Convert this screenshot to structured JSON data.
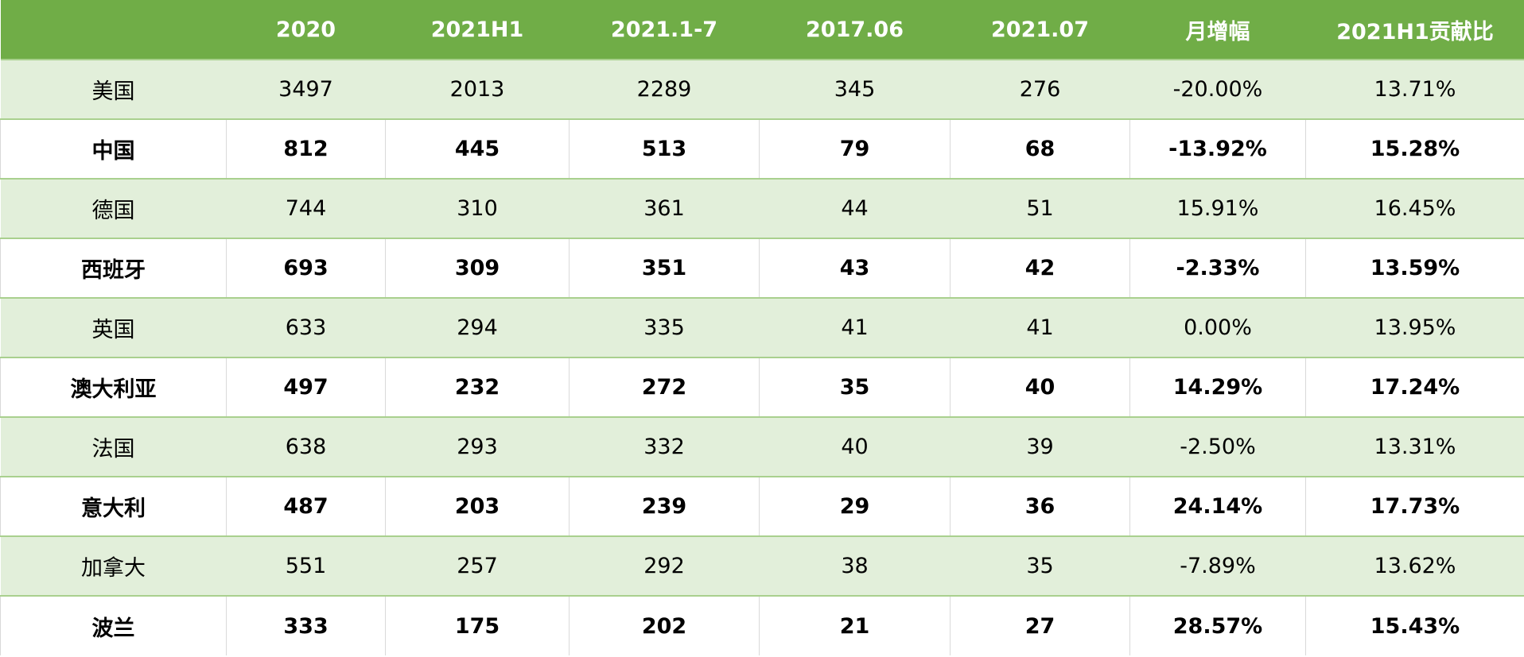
{
  "colors": {
    "header_bg": "#70ad47",
    "band_bg": "#e2efda",
    "border": "#a9d08e"
  },
  "headers": [
    "",
    "2020",
    "2021H1",
    "2021.1-7",
    "2017.06",
    "2021.07",
    "月增幅",
    "2021H1贡献比"
  ],
  "rows": [
    [
      "美国",
      "3497",
      "2013",
      "2289",
      "345",
      "276",
      "-20.00%",
      "13.71%"
    ],
    [
      "中国",
      "812",
      "445",
      "513",
      "79",
      "68",
      "-13.92%",
      "15.28%"
    ],
    [
      "德国",
      "744",
      "310",
      "361",
      "44",
      "51",
      "15.91%",
      "16.45%"
    ],
    [
      "西班牙",
      "693",
      "309",
      "351",
      "43",
      "42",
      "-2.33%",
      "13.59%"
    ],
    [
      "英国",
      "633",
      "294",
      "335",
      "41",
      "41",
      "0.00%",
      "13.95%"
    ],
    [
      "澳大利亚",
      "497",
      "232",
      "272",
      "35",
      "40",
      "14.29%",
      "17.24%"
    ],
    [
      "法国",
      "638",
      "293",
      "332",
      "40",
      "39",
      "-2.50%",
      "13.31%"
    ],
    [
      "意大利",
      "487",
      "203",
      "239",
      "29",
      "36",
      "24.14%",
      "17.73%"
    ],
    [
      "加拿大",
      "551",
      "257",
      "292",
      "38",
      "35",
      "-7.89%",
      "13.62%"
    ],
    [
      "波兰",
      "333",
      "175",
      "202",
      "21",
      "27",
      "28.57%",
      "15.43%"
    ]
  ]
}
